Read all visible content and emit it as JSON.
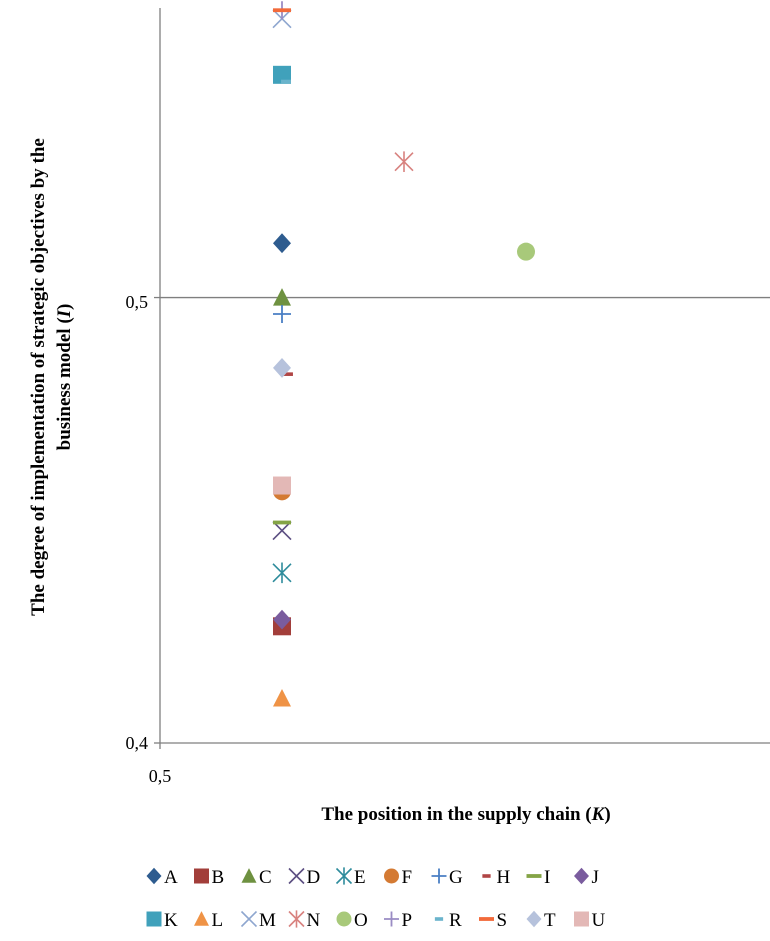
{
  "chart_data": {
    "type": "scatter",
    "title": "",
    "xlabel": "The position in the supply chain (K)",
    "xlabel_main": "The position in the supply chain (",
    "xlabel_var": "K",
    "xlabel_close": ")",
    "ylabel_line1": "The degree of implementation of strategic objectives by the",
    "ylabel_line2_main": "business model (",
    "ylabel_line2_var": "I",
    "ylabel_line2_close": ")",
    "x_ticks": [
      "0,5"
    ],
    "y_ticks": [
      "0,5",
      "0,4"
    ],
    "xlim": [
      0.5,
      0.55
    ],
    "ylim": [
      0.4,
      0.565
    ],
    "crosshair": {
      "x": 0.5,
      "y": 0.5
    },
    "legend_position": "bottom",
    "series": [
      {
        "name": "A",
        "marker": "diamond",
        "color": "#2e5c8f",
        "x": 0.51,
        "y": 0.5122
      },
      {
        "name": "B",
        "marker": "square",
        "color": "#a23e3a",
        "x": 0.51,
        "y": 0.4262
      },
      {
        "name": "C",
        "marker": "triangle",
        "color": "#6e9140",
        "x": 0.51,
        "y": 0.5
      },
      {
        "name": "D",
        "marker": "x",
        "color": "#5c4f82",
        "x": 0.51,
        "y": 0.4477
      },
      {
        "name": "E",
        "marker": "star",
        "color": "#2e8c9c",
        "x": 0.51,
        "y": 0.4382
      },
      {
        "name": "F",
        "marker": "circle",
        "color": "#d47a33",
        "x": 0.51,
        "y": 0.4565
      },
      {
        "name": "G",
        "marker": "plus",
        "color": "#4a7fc4",
        "x": 0.51,
        "y": 0.4963
      },
      {
        "name": "H",
        "marker": "dash-short",
        "color": "#b04545",
        "x": 0.51,
        "y": 0.4828
      },
      {
        "name": "I",
        "marker": "dash-long",
        "color": "#84a446",
        "x": 0.51,
        "y": 0.4495
      },
      {
        "name": "J",
        "marker": "diamond",
        "color": "#7a5c9e",
        "x": 0.51,
        "y": 0.4277
      },
      {
        "name": "K",
        "marker": "square",
        "color": "#40a1bb",
        "x": 0.51,
        "y": 0.55
      },
      {
        "name": "L",
        "marker": "triangle",
        "color": "#ef9346",
        "x": 0.51,
        "y": 0.41
      },
      {
        "name": "M",
        "marker": "x",
        "color": "#8ea6cf",
        "x": 0.51,
        "y": 0.5626
      },
      {
        "name": "N",
        "marker": "star",
        "color": "#d8827f",
        "x": 0.52,
        "y": 0.5305
      },
      {
        "name": "O",
        "marker": "circle",
        "color": "#a8c97a",
        "x": 0.53,
        "y": 0.5103
      },
      {
        "name": "P",
        "marker": "plus",
        "color": "#9a8cc4",
        "x": 0.51,
        "y": 0.5645
      },
      {
        "name": "R",
        "marker": "dash-short",
        "color": "#6ab4cc",
        "x": 0.51,
        "y": 0.5485
      },
      {
        "name": "S",
        "marker": "dash-long",
        "color": "#f26a3a",
        "x": 0.51,
        "y": 0.5645
      },
      {
        "name": "T",
        "marker": "diamond",
        "color": "#b6c2dc",
        "x": 0.51,
        "y": 0.4842
      },
      {
        "name": "U",
        "marker": "square",
        "color": "#e3b8b6",
        "x": 0.51,
        "y": 0.4578
      }
    ]
  }
}
